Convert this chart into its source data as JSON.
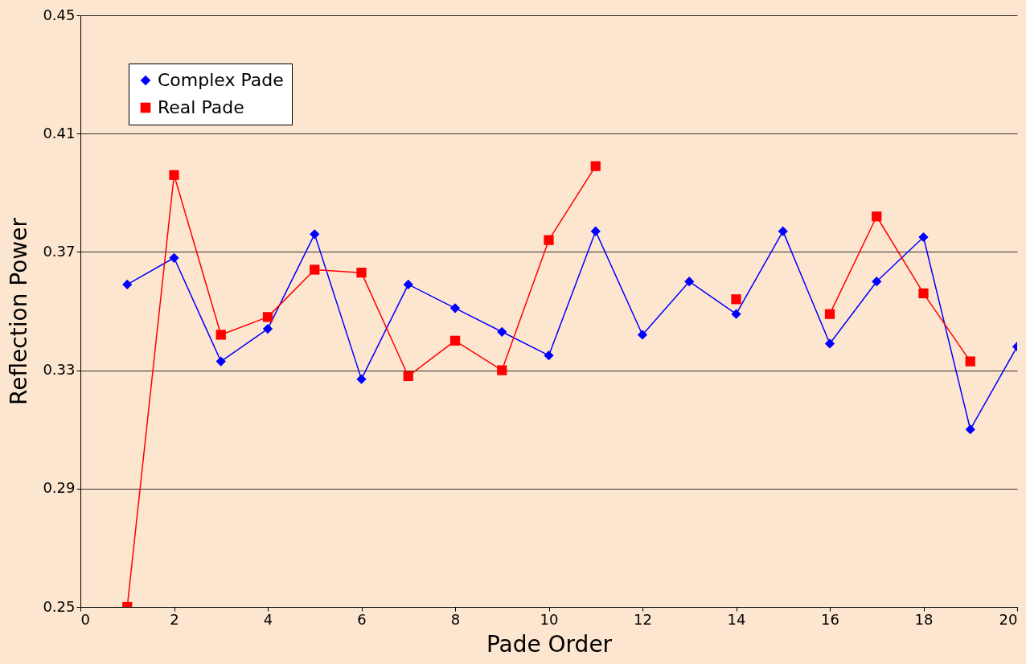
{
  "chart_data": {
    "type": "line",
    "xlabel": "Pade Order",
    "ylabel": "Reflection Power",
    "x": [
      1,
      2,
      3,
      4,
      5,
      6,
      7,
      8,
      9,
      10,
      11,
      12,
      13,
      14,
      15,
      16,
      17,
      18,
      19,
      20
    ],
    "xlim": [
      0,
      20
    ],
    "xticks": [
      0,
      2,
      4,
      6,
      8,
      10,
      12,
      14,
      16,
      18,
      20
    ],
    "ylim": [
      0.25,
      0.45
    ],
    "yticks": [
      0.25,
      0.29,
      0.33,
      0.37,
      0.41,
      0.45
    ],
    "grid": "y",
    "legend": "top left",
    "line_style": "solid",
    "series": [
      {
        "name": "Complex Pade",
        "color": "#0000ff",
        "marker": "diamond",
        "values": [
          0.359,
          0.368,
          0.333,
          0.344,
          0.376,
          0.327,
          0.359,
          0.351,
          0.343,
          0.335,
          0.377,
          0.342,
          0.36,
          0.349,
          0.377,
          0.339,
          0.36,
          0.375,
          0.31,
          0.338
        ]
      },
      {
        "name": "Real Pade",
        "color": "#ff0000",
        "marker": "square",
        "values": [
          0.25,
          0.396,
          0.342,
          0.348,
          0.364,
          0.363,
          0.328,
          0.34,
          0.33,
          0.374,
          0.399,
          null,
          null,
          0.354,
          null,
          0.349,
          0.382,
          0.356,
          0.333,
          null
        ]
      }
    ]
  }
}
